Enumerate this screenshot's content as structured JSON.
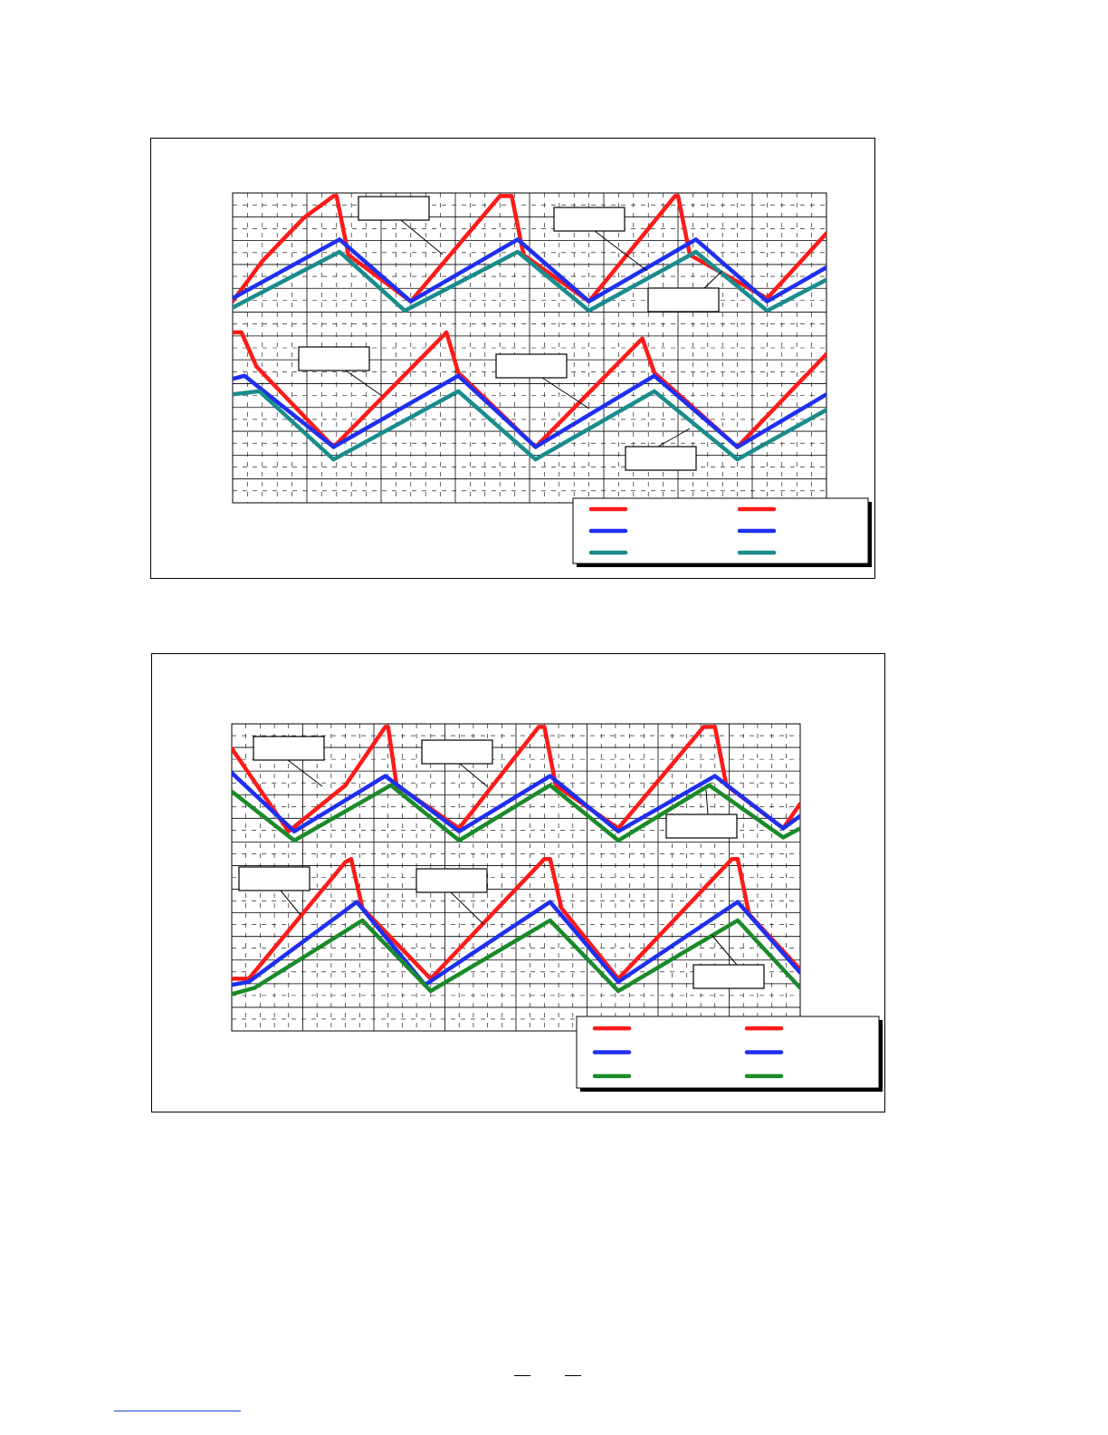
{
  "figures": [
    {
      "chart_data": {
        "type": "line",
        "title": "",
        "xlabel": "",
        "ylabel": "",
        "xlim": [
          0,
          1
        ],
        "ylim": [
          0,
          1
        ],
        "grid": true,
        "legend_placement": "bottom-right",
        "series": [
          {
            "color": "#ff1a1a",
            "x": [
              0.0,
              0.05,
              0.12,
              0.17,
              0.175,
              0.195,
              0.3,
              0.45,
              0.47,
              0.49,
              0.6,
              0.745,
              0.75,
              0.77,
              0.9,
              1.0
            ],
            "y": [
              0.65,
              0.78,
              0.92,
              0.99,
              0.99,
              0.8,
              0.65,
              0.99,
              0.99,
              0.8,
              0.65,
              0.99,
              0.99,
              0.8,
              0.66,
              0.87
            ]
          },
          {
            "color": "#1f2ff0",
            "x": [
              0.0,
              0.18,
              0.3,
              0.48,
              0.6,
              0.78,
              0.9,
              1.0
            ],
            "y": [
              0.66,
              0.85,
              0.65,
              0.85,
              0.65,
              0.85,
              0.65,
              0.76
            ]
          },
          {
            "color": "#1a8c8c",
            "x": [
              0.0,
              0.18,
              0.29,
              0.48,
              0.6,
              0.78,
              0.9,
              1.0
            ],
            "y": [
              0.63,
              0.81,
              0.62,
              0.81,
              0.62,
              0.81,
              0.62,
              0.72
            ]
          },
          {
            "color": "#ff1a1a",
            "x": [
              0.0,
              0.015,
              0.04,
              0.17,
              0.36,
              0.38,
              0.51,
              0.69,
              0.71,
              0.85,
              1.0
            ],
            "y": [
              0.55,
              0.55,
              0.44,
              0.18,
              0.55,
              0.42,
              0.18,
              0.53,
              0.42,
              0.18,
              0.48
            ]
          },
          {
            "color": "#1f2ff0",
            "x": [
              0.0,
              0.02,
              0.17,
              0.38,
              0.51,
              0.71,
              0.85,
              1.0
            ],
            "y": [
              0.4,
              0.41,
              0.18,
              0.41,
              0.18,
              0.41,
              0.18,
              0.35
            ]
          },
          {
            "color": "#1a8c8c",
            "x": [
              0.0,
              0.045,
              0.17,
              0.38,
              0.51,
              0.71,
              0.85,
              1.0
            ],
            "y": [
              0.35,
              0.36,
              0.14,
              0.36,
              0.14,
              0.36,
              0.14,
              0.3
            ]
          }
        ],
        "annotation_boxes": [
          "",
          "",
          "",
          "",
          "",
          ""
        ],
        "legend": [
          "",
          "",
          "",
          "",
          "",
          ""
        ]
      }
    },
    {
      "chart_data": {
        "type": "line",
        "title": "",
        "xlabel": "",
        "ylabel": "",
        "xlim": [
          0,
          1
        ],
        "ylim": [
          0,
          1
        ],
        "grid": true,
        "legend_placement": "bottom-right",
        "series": [
          {
            "color": "#ff1a1a",
            "x": [
              0.0,
              0.1,
              0.2,
              0.27,
              0.275,
              0.29,
              0.4,
              0.54,
              0.55,
              0.57,
              0.68,
              0.83,
              0.85,
              0.87,
              0.97,
              1.0
            ],
            "y": [
              0.92,
              0.65,
              0.8,
              0.99,
              0.99,
              0.8,
              0.66,
              0.99,
              0.99,
              0.8,
              0.66,
              0.99,
              0.99,
              0.8,
              0.66,
              0.74
            ]
          },
          {
            "color": "#1f2ff0",
            "x": [
              0.0,
              0.11,
              0.27,
              0.4,
              0.56,
              0.68,
              0.85,
              0.97,
              1.0
            ],
            "y": [
              0.84,
              0.65,
              0.83,
              0.65,
              0.83,
              0.65,
              0.83,
              0.66,
              0.7
            ]
          },
          {
            "color": "#1a8a2a",
            "x": [
              0.0,
              0.11,
              0.28,
              0.4,
              0.56,
              0.68,
              0.84,
              0.97,
              1.0
            ],
            "y": [
              0.78,
              0.62,
              0.8,
              0.62,
              0.8,
              0.62,
              0.8,
              0.63,
              0.66
            ]
          },
          {
            "color": "#ff1a1a",
            "x": [
              0.0,
              0.03,
              0.2,
              0.21,
              0.23,
              0.35,
              0.55,
              0.56,
              0.58,
              0.68,
              0.88,
              0.89,
              0.91,
              1.0
            ],
            "y": [
              0.17,
              0.17,
              0.55,
              0.56,
              0.4,
              0.17,
              0.56,
              0.56,
              0.4,
              0.17,
              0.56,
              0.56,
              0.38,
              0.2
            ]
          },
          {
            "color": "#1f2ff0",
            "x": [
              0.0,
              0.03,
              0.22,
              0.34,
              0.56,
              0.68,
              0.89,
              1.0
            ],
            "y": [
              0.15,
              0.16,
              0.42,
              0.15,
              0.42,
              0.16,
              0.42,
              0.19
            ]
          },
          {
            "color": "#1a8a2a",
            "x": [
              0.0,
              0.04,
              0.23,
              0.35,
              0.56,
              0.68,
              0.89,
              1.0
            ],
            "y": [
              0.12,
              0.14,
              0.36,
              0.13,
              0.36,
              0.13,
              0.36,
              0.14
            ]
          }
        ],
        "annotation_boxes": [
          "",
          "",
          "",
          "",
          "",
          ""
        ],
        "legend": [
          "",
          "",
          "",
          "",
          "",
          ""
        ]
      }
    }
  ]
}
